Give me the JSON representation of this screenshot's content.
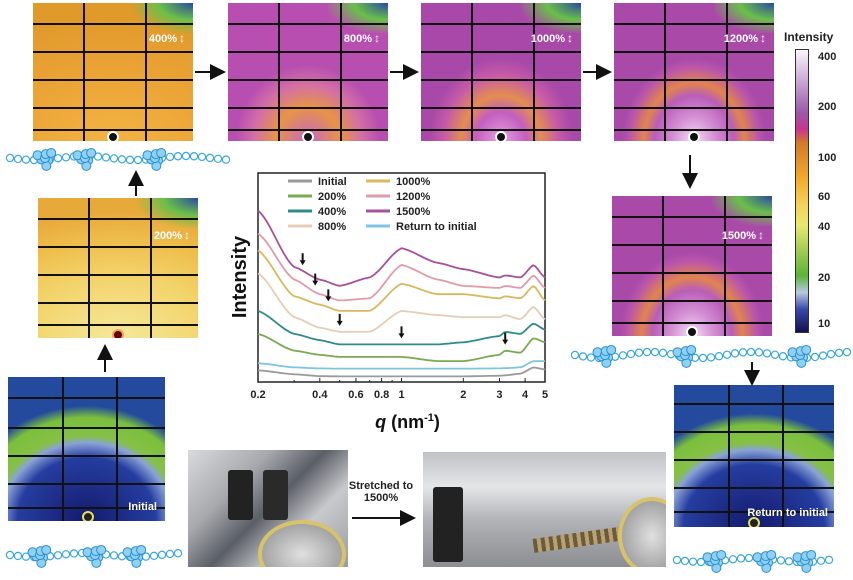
{
  "panels": {
    "p400": {
      "label": "400%"
    },
    "p800": {
      "label": "800%"
    },
    "p1000": {
      "label": "1000%"
    },
    "p1200": {
      "label": "1200%"
    },
    "p1500": {
      "label": "1500%"
    },
    "p200": {
      "label": "200%"
    },
    "initial": {
      "label": "Initial"
    },
    "return": {
      "label": "Return to initial"
    }
  },
  "colorbar": {
    "title": "Intensity",
    "scale": "log",
    "ticks": [
      "400",
      "200",
      "100",
      "60",
      "40",
      "20",
      "10"
    ]
  },
  "stretch_text": {
    "line1": "Stretched to",
    "line2": "1500%"
  },
  "chart_data": {
    "type": "line",
    "xlabel": "q (nm-1)",
    "xlabel_main": "q",
    "xlabel_unit": "(nm",
    "xlabel_sup": "-1",
    "xlabel_end": ")",
    "ylabel": "Intensity",
    "xscale": "log",
    "xlim": [
      0.2,
      5
    ],
    "ylim": [
      0,
      1
    ],
    "yunits": "arbitrary (curves offset)",
    "xticks": [
      "0.2",
      "0.4",
      "0.6",
      "0.8",
      "1",
      "2",
      "3",
      "4",
      "5"
    ],
    "grid": false,
    "legend_position": "top",
    "x": [
      0.2,
      0.3,
      0.4,
      0.5,
      0.7,
      1.0,
      1.5,
      2,
      3,
      3.2,
      3.8,
      4.4,
      5
    ],
    "series": [
      {
        "name": "Initial",
        "color": "#9a9a9a",
        "values": [
          0.056,
          0.037,
          0.028,
          0.027,
          0.027,
          0.027,
          0.027,
          0.027,
          0.03,
          0.032,
          0.04,
          0.07,
          0.06
        ]
      },
      {
        "name": "200%",
        "color": "#7aab52",
        "values": [
          0.23,
          0.15,
          0.13,
          0.12,
          0.12,
          0.12,
          0.1,
          0.1,
          0.13,
          0.15,
          0.14,
          0.21,
          0.19
        ]
      },
      {
        "name": "400%",
        "color": "#2f8a8e",
        "values": [
          0.34,
          0.23,
          0.2,
          0.18,
          0.18,
          0.18,
          0.18,
          0.19,
          0.22,
          0.24,
          0.23,
          0.28,
          0.25
        ]
      },
      {
        "name": "800%",
        "color": "#e8cdb6",
        "values": [
          0.52,
          0.31,
          0.26,
          0.24,
          0.24,
          0.34,
          0.32,
          0.31,
          0.31,
          0.32,
          0.3,
          0.36,
          0.3
        ]
      },
      {
        "name": "1000%",
        "color": "#d9b85e",
        "values": [
          0.63,
          0.41,
          0.37,
          0.34,
          0.34,
          0.47,
          0.42,
          0.42,
          0.4,
          0.41,
          0.4,
          0.46,
          0.39
        ]
      },
      {
        "name": "1200%",
        "color": "#e39aaa",
        "values": [
          0.71,
          0.49,
          0.42,
          0.39,
          0.4,
          0.56,
          0.49,
          0.46,
          0.45,
          0.46,
          0.45,
          0.51,
          0.45
        ]
      },
      {
        "name": "1500%",
        "color": "#a8509a",
        "values": [
          0.82,
          0.55,
          0.49,
          0.46,
          0.5,
          0.64,
          0.57,
          0.54,
          0.5,
          0.51,
          0.5,
          0.56,
          0.5
        ]
      },
      {
        "name": "Return to initial",
        "color": "#7fc3e6",
        "values": [
          0.09,
          0.07,
          0.065,
          0.064,
          0.064,
          0.064,
          0.064,
          0.064,
          0.065,
          0.066,
          0.07,
          0.1,
          0.1
        ]
      }
    ],
    "arrow_annotations": [
      {
        "series": "1500%",
        "q": 0.33
      },
      {
        "series": "1200%",
        "q": 0.38
      },
      {
        "series": "1000%",
        "q": 0.44
      },
      {
        "series": "800%",
        "q": 0.5
      },
      {
        "series": "400%",
        "q": 1.0
      },
      {
        "series": "200%",
        "q": 3.2
      }
    ]
  }
}
